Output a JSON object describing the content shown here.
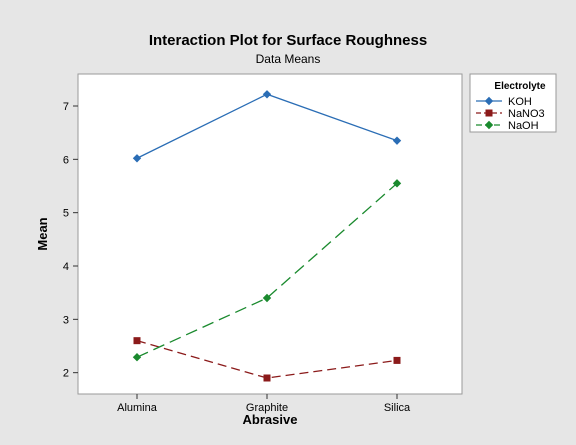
{
  "chart_data": {
    "type": "line",
    "title": "Interaction Plot for Surface Roughness",
    "subtitle": "Data Means",
    "xlabel": "Abrasive",
    "ylabel": "Mean",
    "categories": [
      "Alumina",
      "Graphite",
      "Silica"
    ],
    "ylim": [
      1.6,
      7.6
    ],
    "yticks": [
      2,
      3,
      4,
      5,
      6,
      7
    ],
    "grid": false,
    "legend": {
      "title": "Electrolyte",
      "placement": "right"
    },
    "series": [
      {
        "name": "KOH",
        "values": [
          6.02,
          7.22,
          6.35
        ],
        "color": "#2a6db5",
        "marker": "diamond",
        "dash": "solid"
      },
      {
        "name": "NaNO3",
        "values": [
          2.6,
          1.9,
          2.23
        ],
        "color": "#8b1a1a",
        "marker": "square",
        "dash": "dashed"
      },
      {
        "name": "NaOH",
        "values": [
          2.29,
          3.4,
          5.55
        ],
        "color": "#1a8a2e",
        "marker": "diamond",
        "dash": "longdash"
      }
    ]
  }
}
